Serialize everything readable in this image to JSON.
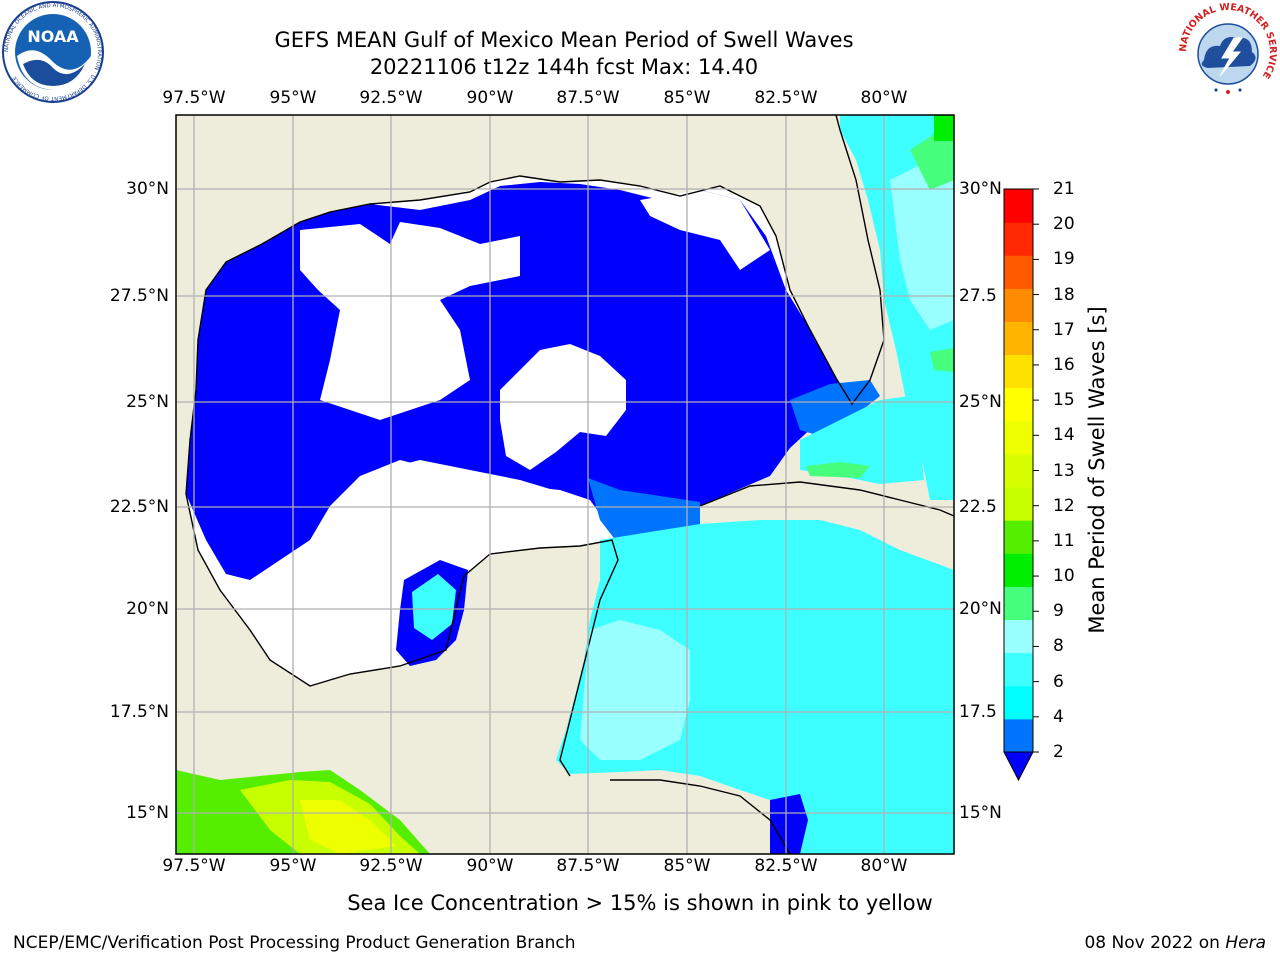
{
  "header": {
    "title_line1": "GEFS MEAN Gulf of Mexico Mean Period of Swell Waves",
    "title_line2": "20221106 t12z 144h fcst   Max: 14.40"
  },
  "logos": {
    "left": {
      "name": "NOAA",
      "ring_text": "NATIONAL OCEANIC AND ATMOSPHERIC ADMINISTRATION · U.S. DEPARTMENT OF COMMERCE"
    },
    "right": {
      "name": "NATIONAL WEATHER SERVICE"
    }
  },
  "map": {
    "lon_ticks": [
      "97.5°W",
      "95°W",
      "92.5°W",
      "90°W",
      "87.5°W",
      "85°W",
      "82.5°W",
      "80°W"
    ],
    "lat_ticks_left": [
      "30°N",
      "27.5°N",
      "25°N",
      "22.5°N",
      "20°N",
      "17.5°N",
      "15°N"
    ],
    "lat_ticks_right": [
      "30°N",
      "27.5",
      "25°N",
      "22.5",
      "20°N",
      "17.5",
      "15°N"
    ],
    "colors": {
      "land": "#eeeddc",
      "masked_water": "#ffffff",
      "coast": "#000000",
      "grid": "#b0b0b0"
    }
  },
  "colorbar": {
    "label": "Mean Period of Swell Waves [s]",
    "ticks": [
      "21",
      "20",
      "19",
      "18",
      "17",
      "16",
      "15",
      "14",
      "13",
      "12",
      "11",
      "10",
      "9",
      "8",
      "6",
      "4",
      "2"
    ],
    "colors": [
      "#0000ff",
      "#0073ff",
      "#00ffff",
      "#3effff",
      "#99ffff",
      "#46ff7c",
      "#00ee00",
      "#55ee00",
      "#c8ff00",
      "#d7ff00",
      "#eeff00",
      "#ffff00",
      "#ffe100",
      "#ffb400",
      "#ff8c00",
      "#ff5a00",
      "#ff2800",
      "#ff0000"
    ],
    "extend": "min"
  },
  "footer": {
    "ice_note": "Sea Ice Concentration > 15% is shown in pink to yellow",
    "credit": "NCEP/EMC/Verification Post Processing Product Generation Branch",
    "date": "08 Nov 2022 on",
    "host": "Hera"
  }
}
